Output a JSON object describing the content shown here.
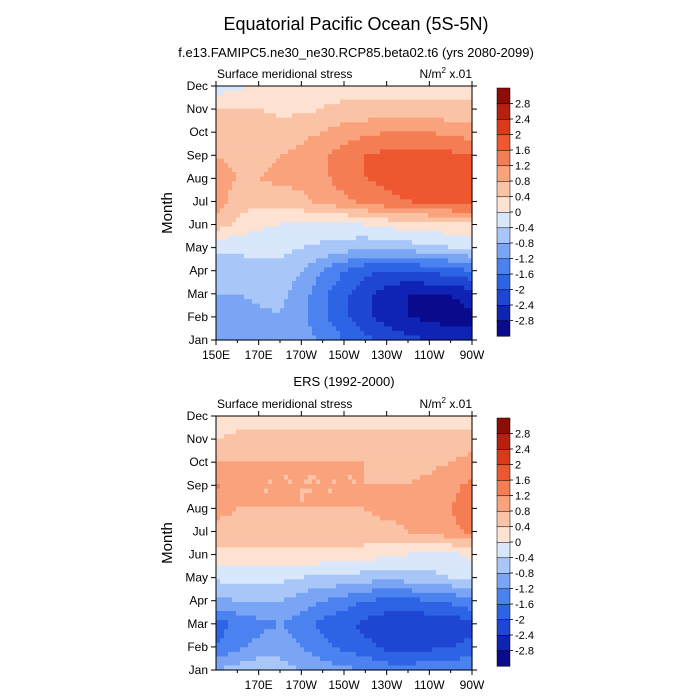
{
  "figure_title": "Equatorial Pacific Ocean (5S-5N)",
  "chart_data": [
    {
      "type": "heatmap",
      "title": "f.e13.FAMIPC5.ne30_ne30.RCP85.beta02.t6 (yrs 2080-2099)",
      "left_label": "Surface meridional stress",
      "units_label": {
        "base": "N/m",
        "exponent": "2",
        "scale": " x.01"
      },
      "ylabel": "Month",
      "xlabel": "",
      "x_ticks": [
        "150E",
        "170E",
        "170W",
        "150W",
        "130W",
        "110W",
        "90W"
      ],
      "y_ticks": [
        "Jan",
        "Feb",
        "Mar",
        "Apr",
        "May",
        "Jun",
        "Jul",
        "Aug",
        "Sep",
        "Oct",
        "Nov",
        "Dec"
      ],
      "xlim": [
        150,
        270
      ],
      "x_lon": [
        150,
        160,
        170,
        180,
        190,
        200,
        210,
        220,
        230,
        240,
        250,
        260,
        270
      ],
      "grid": [
        [
          -1.2,
          -1.0,
          -0.9,
          -0.8,
          -1.0,
          -1.3,
          -1.6,
          -1.9,
          -2.1,
          -2.3,
          -2.4,
          -2.6,
          -2.7
        ],
        [
          -1.0,
          -1.0,
          -0.9,
          -0.8,
          -1.1,
          -1.5,
          -1.9,
          -2.3,
          -2.6,
          -2.8,
          -2.9,
          -3.0,
          -2.9
        ],
        [
          -0.8,
          -0.8,
          -0.7,
          -0.7,
          -1.0,
          -1.5,
          -1.9,
          -2.3,
          -2.6,
          -2.8,
          -2.8,
          -2.8,
          -2.6
        ],
        [
          -0.6,
          -0.6,
          -0.5,
          -0.5,
          -0.8,
          -1.2,
          -1.6,
          -1.9,
          -2.0,
          -2.0,
          -1.9,
          -1.8,
          -1.6
        ],
        [
          -0.3,
          -0.3,
          -0.3,
          -0.3,
          -0.4,
          -0.5,
          -0.6,
          -0.7,
          -0.7,
          -0.6,
          -0.5,
          -0.4,
          -0.3
        ],
        [
          0.6,
          0.3,
          0.1,
          0.0,
          -0.1,
          -0.1,
          -0.1,
          0.0,
          0.1,
          0.2,
          0.2,
          0.3,
          0.3
        ],
        [
          1.0,
          0.6,
          0.5,
          0.6,
          0.7,
          0.9,
          1.1,
          1.3,
          1.5,
          1.6,
          1.7,
          1.8,
          1.9
        ],
        [
          1.0,
          0.8,
          0.8,
          0.9,
          0.9,
          1.1,
          1.4,
          1.6,
          1.7,
          1.8,
          1.8,
          1.9,
          1.8
        ],
        [
          0.8,
          0.7,
          0.7,
          0.8,
          0.9,
          1.1,
          1.4,
          1.6,
          1.7,
          1.7,
          1.7,
          1.7,
          1.6
        ],
        [
          0.6,
          0.6,
          0.6,
          0.6,
          0.7,
          0.8,
          1.0,
          1.1,
          1.2,
          1.2,
          1.2,
          1.1,
          1.0
        ],
        [
          0.4,
          0.4,
          0.4,
          0.3,
          0.3,
          0.4,
          0.5,
          0.5,
          0.6,
          0.6,
          0.5,
          0.5,
          0.5
        ],
        [
          -0.2,
          -0.1,
          0.1,
          0.2,
          0.3,
          0.3,
          0.2,
          0.2,
          0.2,
          0.2,
          0.2,
          0.3,
          0.3
        ]
      ],
      "levels": [
        -2.8,
        -2.4,
        -2,
        -1.6,
        -1.2,
        -0.8,
        -0.4,
        0,
        0.4,
        0.8,
        1.2,
        1.6,
        2,
        2.4,
        2.8
      ]
    },
    {
      "type": "heatmap",
      "title": "ERS (1992-2000)",
      "left_label": "Surface meridional stress",
      "units_label": {
        "base": "N/m",
        "exponent": "2",
        "scale": " x.01"
      },
      "ylabel": "Month",
      "xlabel": "",
      "x_ticks": [
        "170E",
        "170W",
        "150W",
        "130W",
        "110W",
        "90W"
      ],
      "y_ticks": [
        "Jan",
        "Feb",
        "Mar",
        "Apr",
        "May",
        "Jun",
        "Jul",
        "Aug",
        "Sep",
        "Oct",
        "Nov",
        "Dec"
      ],
      "xlim": [
        150,
        270
      ],
      "x_lon": [
        150,
        160,
        170,
        180,
        190,
        200,
        210,
        220,
        230,
        240,
        250,
        260,
        270
      ],
      "grid": [
        [
          -0.8,
          -0.6,
          -0.5,
          -0.6,
          -0.8,
          -1.0,
          -1.1,
          -1.2,
          -1.4,
          -1.4,
          -1.3,
          -1.3,
          -1.2
        ],
        [
          -1.6,
          -1.3,
          -1.1,
          -1.0,
          -1.2,
          -1.5,
          -1.7,
          -1.9,
          -2.1,
          -2.2,
          -2.1,
          -2.0,
          -1.9
        ],
        [
          -1.8,
          -1.5,
          -1.3,
          -1.2,
          -1.4,
          -1.7,
          -1.9,
          -2.1,
          -2.3,
          -2.4,
          -2.3,
          -2.3,
          -2.1
        ],
        [
          -0.9,
          -0.8,
          -0.8,
          -0.8,
          -1.0,
          -1.2,
          -1.4,
          -1.6,
          -1.7,
          -1.7,
          -1.6,
          -1.5,
          -1.3
        ],
        [
          -0.3,
          -0.3,
          -0.3,
          -0.3,
          -0.4,
          -0.5,
          -0.5,
          -0.6,
          -0.7,
          -0.6,
          -0.5,
          -0.4,
          -0.3
        ],
        [
          0.3,
          0.3,
          0.3,
          0.3,
          0.3,
          0.3,
          0.3,
          0.2,
          0.1,
          0.0,
          -0.2,
          -0.1,
          0.1
        ],
        [
          0.7,
          0.7,
          0.7,
          0.7,
          0.7,
          0.7,
          0.7,
          0.7,
          0.7,
          0.8,
          0.9,
          1.1,
          1.3
        ],
        [
          0.9,
          0.8,
          0.8,
          0.8,
          0.8,
          0.8,
          0.8,
          0.8,
          0.9,
          0.9,
          1.0,
          1.2,
          1.4
        ],
        [
          1.3,
          0.9,
          0.8,
          0.8,
          0.8,
          0.8,
          0.8,
          0.8,
          0.8,
          0.8,
          0.9,
          1.1,
          1.3
        ],
        [
          0.8,
          0.8,
          0.8,
          0.8,
          0.8,
          0.8,
          0.8,
          0.8,
          0.7,
          0.7,
          0.7,
          0.8,
          1.0
        ],
        [
          0.4,
          0.5,
          0.5,
          0.5,
          0.5,
          0.5,
          0.5,
          0.5,
          0.5,
          0.5,
          0.5,
          0.5,
          0.5
        ],
        [
          0.1,
          0.2,
          0.2,
          0.3,
          0.3,
          0.3,
          0.3,
          0.3,
          0.3,
          0.3,
          0.3,
          0.3,
          0.3
        ]
      ],
      "levels": [
        -2.8,
        -2.4,
        -2,
        -1.6,
        -1.2,
        -0.8,
        -0.4,
        0,
        0.4,
        0.8,
        1.2,
        1.6,
        2,
        2.4,
        2.8
      ]
    }
  ],
  "colorbar": {
    "labels": [
      "2.8",
      "2.4",
      "2",
      "1.6",
      "1.2",
      "0.8",
      "0.4",
      "0",
      "-0.4",
      "-0.8",
      "-1.2",
      "-1.6",
      "-2",
      "-2.4",
      "-2.8"
    ],
    "colors": [
      "#0a0a8c",
      "#0f23b4",
      "#1e46d2",
      "#2d64e6",
      "#4b82f0",
      "#7aa5f5",
      "#a9c6f9",
      "#d9e7fc",
      "#fde2d2",
      "#fbc3a5",
      "#f9a27c",
      "#f47d53",
      "#ee572f",
      "#da3a18",
      "#b81f0e",
      "#8c0c06"
    ]
  }
}
